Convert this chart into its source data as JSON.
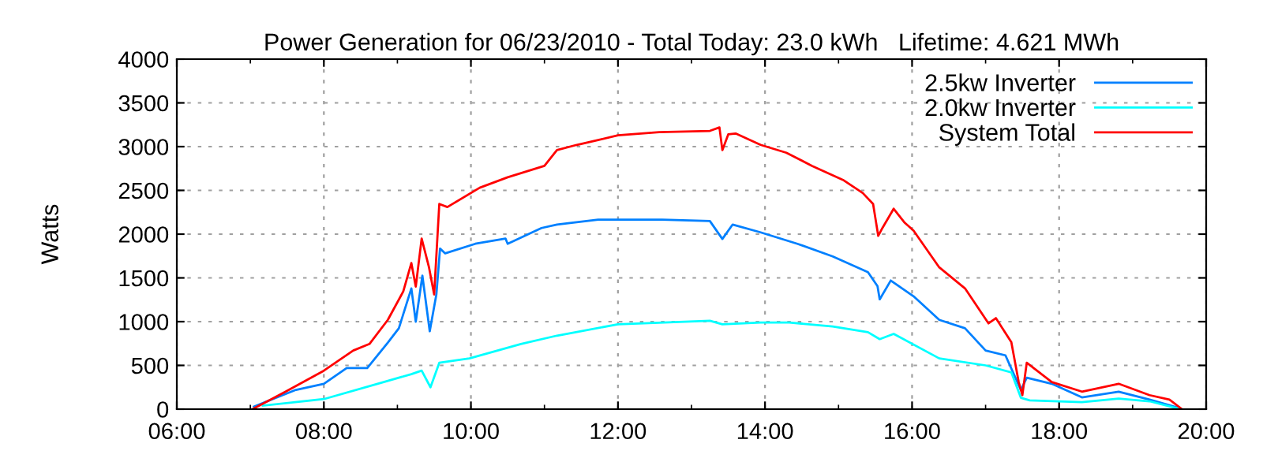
{
  "chart_data": {
    "type": "line",
    "title": "Power Generation for 06/23/2010 - Total Today: 23.0 kWh   Lifetime: 4.621 MWh",
    "ylabel": "Watts",
    "xlim": [
      6,
      20
    ],
    "ylim": [
      0,
      4000
    ],
    "xticks": [
      {
        "value": 6,
        "label": "06:00"
      },
      {
        "value": 7,
        "label": null
      },
      {
        "value": 8,
        "label": "08:00"
      },
      {
        "value": 9,
        "label": null
      },
      {
        "value": 10,
        "label": "10:00"
      },
      {
        "value": 11,
        "label": null
      },
      {
        "value": 12,
        "label": "12:00"
      },
      {
        "value": 13,
        "label": null
      },
      {
        "value": 14,
        "label": "14:00"
      },
      {
        "value": 15,
        "label": null
      },
      {
        "value": 16,
        "label": "16:00"
      },
      {
        "value": 17,
        "label": null
      },
      {
        "value": 18,
        "label": "18:00"
      },
      {
        "value": 19,
        "label": null
      },
      {
        "value": 20,
        "label": "20:00"
      }
    ],
    "yticks": [
      0,
      500,
      1000,
      1500,
      2000,
      2500,
      3000,
      3500,
      4000
    ],
    "grid": true,
    "legend": "top right",
    "line_style": "solid",
    "marker": "none",
    "series": [
      {
        "name": "2.5kw Inverter",
        "color": "#0080ff",
        "x": [
          7.05,
          7.62,
          8.0,
          8.31,
          8.59,
          8.87,
          9.02,
          9.19,
          9.25,
          9.34,
          9.44,
          9.53,
          9.58,
          9.65,
          10.06,
          10.47,
          10.5,
          10.96,
          11.17,
          11.37,
          11.73,
          12.6,
          13.25,
          13.42,
          13.56,
          13.94,
          14.44,
          14.92,
          15.4,
          15.53,
          15.56,
          15.71,
          16.02,
          16.37,
          16.72,
          17.0,
          17.27,
          17.48,
          17.56,
          17.9,
          18.31,
          18.81,
          19.23,
          19.6
        ],
        "values": [
          30,
          220,
          290,
          470,
          470,
          760,
          925,
          1380,
          1000,
          1525,
          890,
          1310,
          1835,
          1780,
          1890,
          1950,
          1890,
          2070,
          2110,
          2130,
          2165,
          2165,
          2150,
          1945,
          2110,
          2020,
          1890,
          1745,
          1565,
          1405,
          1255,
          1470,
          1290,
          1020,
          925,
          670,
          615,
          220,
          360,
          290,
          135,
          200,
          110,
          20
        ]
      },
      {
        "name": "2.0kw Inverter",
        "color": "#00ffff",
        "x": [
          7.17,
          8.0,
          8.73,
          9.19,
          9.33,
          9.45,
          9.57,
          9.98,
          10.68,
          11.17,
          11.37,
          12.0,
          13.25,
          13.42,
          13.94,
          14.33,
          14.92,
          15.4,
          15.56,
          15.75,
          16.37,
          17.0,
          17.35,
          17.48,
          17.6,
          18.31,
          18.81,
          19.23,
          19.65
        ],
        "values": [
          40,
          115,
          290,
          400,
          440,
          250,
          530,
          580,
          745,
          840,
          870,
          970,
          1010,
          970,
          990,
          990,
          945,
          880,
          800,
          860,
          580,
          500,
          420,
          130,
          100,
          80,
          120,
          90,
          0
        ]
      },
      {
        "name": "System Total",
        "color": "#ff0000",
        "x": [
          7.03,
          7.48,
          8.0,
          8.4,
          8.62,
          8.87,
          9.08,
          9.19,
          9.25,
          9.33,
          9.43,
          9.5,
          9.57,
          9.68,
          10.12,
          10.5,
          11.0,
          11.17,
          11.44,
          11.73,
          12.0,
          12.56,
          13.25,
          13.38,
          13.42,
          13.5,
          13.6,
          13.94,
          14.29,
          14.64,
          15.06,
          15.33,
          15.47,
          15.54,
          15.6,
          15.75,
          15.9,
          16.02,
          16.37,
          16.72,
          17.04,
          17.14,
          17.35,
          17.45,
          17.5,
          17.56,
          17.9,
          18.31,
          18.81,
          19.23,
          19.5,
          19.67
        ],
        "values": [
          0,
          200,
          440,
          670,
          745,
          1020,
          1345,
          1670,
          1400,
          1950,
          1620,
          1310,
          2345,
          2310,
          2530,
          2650,
          2780,
          2960,
          3020,
          3075,
          3130,
          3165,
          3180,
          3220,
          2960,
          3140,
          3150,
          3020,
          2930,
          2780,
          2620,
          2470,
          2345,
          1980,
          2075,
          2290,
          2130,
          2040,
          1620,
          1380,
          980,
          1040,
          765,
          310,
          160,
          530,
          310,
          200,
          290,
          160,
          110,
          0
        ]
      }
    ]
  }
}
